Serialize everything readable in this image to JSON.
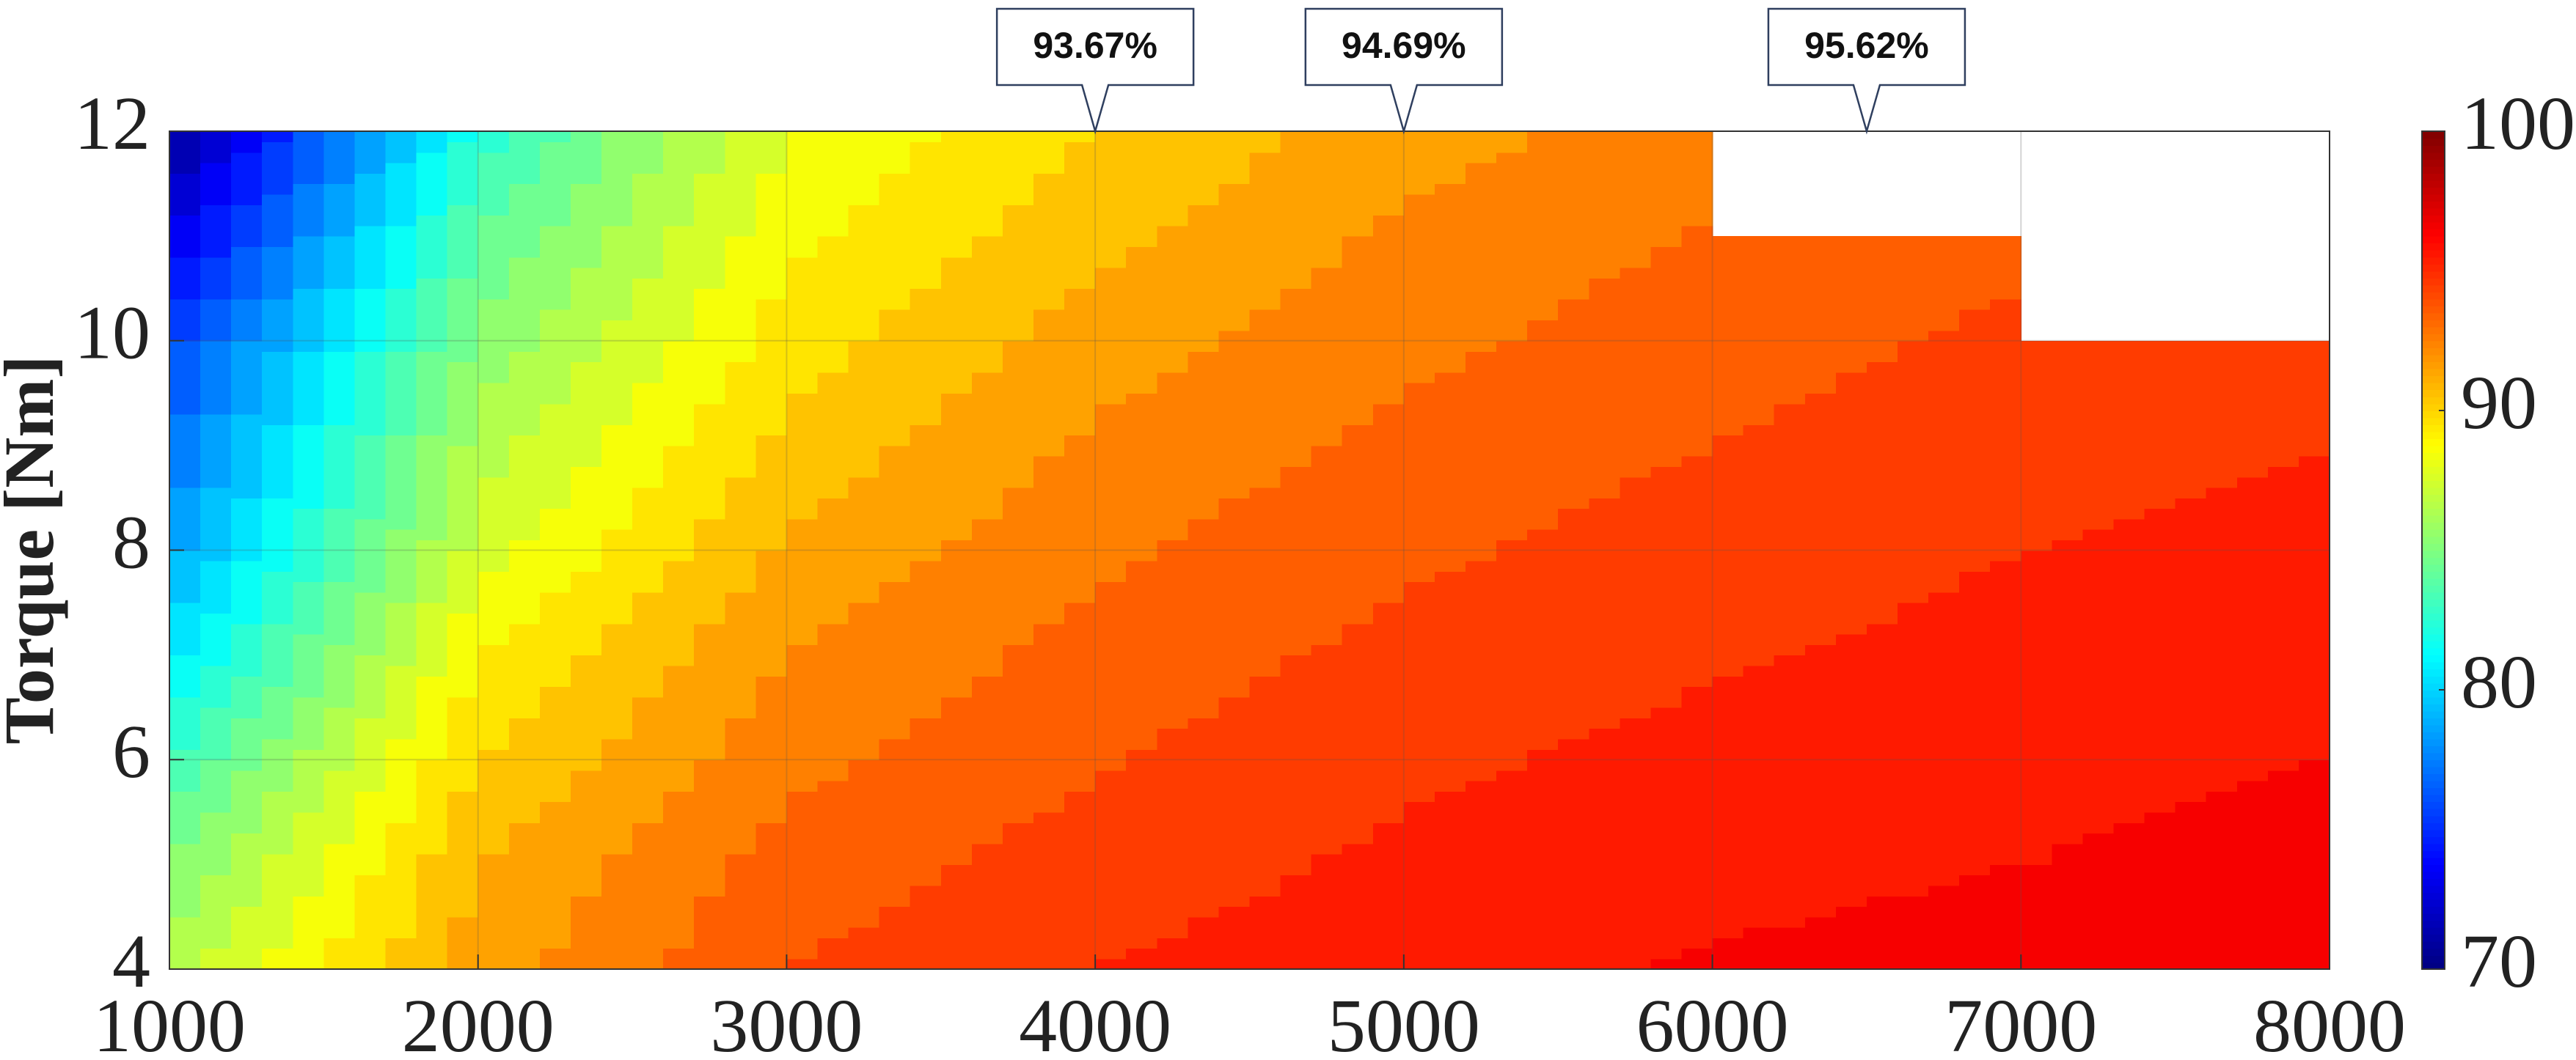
{
  "chart_data": {
    "type": "contour",
    "ylabel": "Torque [Nm]",
    "x": [
      1000,
      2000,
      3000,
      4000,
      5000,
      6000,
      7000,
      8000
    ],
    "y": [
      4,
      5,
      6,
      7,
      8,
      9,
      10,
      11,
      12
    ],
    "z": [
      [
        86.5,
        91.5,
        94,
        95,
        95.6,
        96.1,
        96.4,
        96.7
      ],
      [
        85,
        91,
        93.4,
        94.5,
        95.2,
        95.7,
        96,
        96.3
      ],
      [
        83,
        90,
        92.7,
        93.9,
        94.8,
        95.3,
        95.7,
        96
      ],
      [
        80.5,
        89,
        92,
        93.4,
        94.3,
        94.9,
        95.3,
        95.7
      ],
      [
        78.5,
        87.5,
        91.2,
        92.8,
        93.8,
        94.5,
        95,
        95.3
      ],
      [
        77,
        86.5,
        90.3,
        92.2,
        93.3,
        94,
        94.6,
        95
      ],
      [
        75.5,
        85.3,
        89.5,
        91.5,
        92.7,
        93.6,
        94.2,
        94.6
      ],
      [
        73,
        84,
        88.7,
        90.7,
        92.2,
        93.1,
        93.8,
        null
      ],
      [
        70.5,
        82.5,
        88,
        90,
        91.5,
        92.6,
        null,
        null
      ]
    ],
    "xlim": [
      1000,
      8000
    ],
    "ylim": [
      4,
      12
    ],
    "xticks": [
      1000,
      2000,
      3000,
      4000,
      5000,
      6000,
      7000,
      8000
    ],
    "yticks": [
      4,
      6,
      8,
      10,
      12
    ],
    "clim": [
      70,
      100
    ],
    "cticks": [
      70,
      80,
      90,
      100
    ],
    "colormap": "jet",
    "grid": true,
    "annotations": [
      {
        "x": 4000,
        "y": 12,
        "label": "93.67%"
      },
      {
        "x": 5000,
        "y": 12,
        "label": "94.69%"
      },
      {
        "x": 6500,
        "y": 12,
        "label": "95.62%"
      }
    ]
  }
}
